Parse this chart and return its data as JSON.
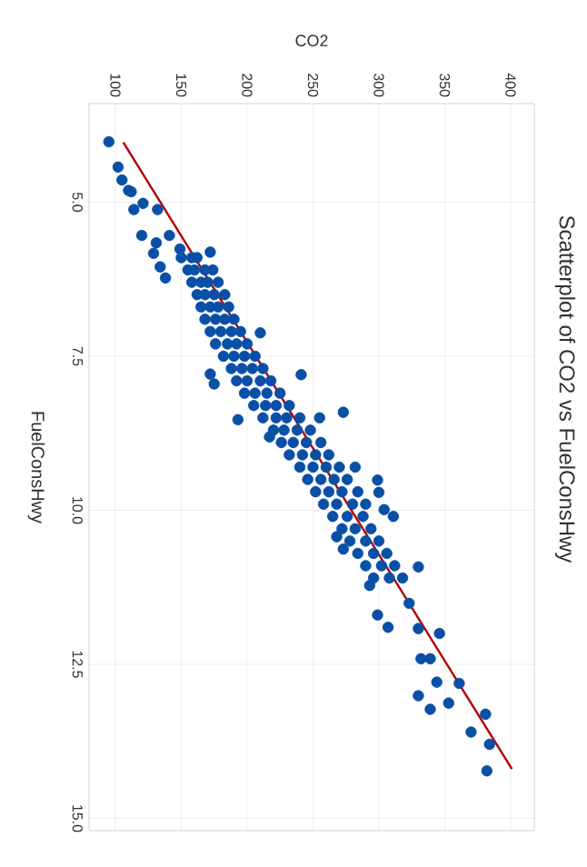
{
  "chart_data": {
    "type": "scatter",
    "title": "Scatterplot of CO2 vs FuelConsHwy",
    "xlabel": "CO2",
    "ylabel": "FuelConsHwy",
    "xlim": [
      80,
      418
    ],
    "ylim": [
      15.2,
      3.4
    ],
    "xticks": [
      100,
      150,
      200,
      250,
      300,
      350,
      400
    ],
    "yticks": [
      {
        "value": 5,
        "label": "5.0"
      },
      {
        "value": 7.5,
        "label": "7.5"
      },
      {
        "value": 10,
        "label": "10.0"
      },
      {
        "value": 12.5,
        "label": "12.5"
      },
      {
        "value": 15,
        "label": "15.0"
      }
    ],
    "grid": true,
    "series": [
      {
        "color": "#0a4fa6",
        "marker": "circle",
        "x": [
          95,
          102,
          105,
          110,
          112,
          114,
          121,
          132,
          120,
          131,
          129,
          134,
          138,
          141,
          149,
          172,
          172,
          175,
          193,
          217,
          210,
          273,
          241,
          299,
          300,
          311,
          304,
          268,
          273,
          330,
          299,
          307,
          323,
          346,
          330,
          293,
          332,
          339,
          344,
          361,
          330,
          339,
          353,
          381,
          370,
          384,
          382,
          150,
          158,
          162,
          155,
          160,
          168,
          174,
          158,
          165,
          170,
          178,
          162,
          168,
          175,
          183,
          165,
          172,
          178,
          186,
          168,
          176,
          183,
          190,
          172,
          180,
          188,
          195,
          176,
          185,
          192,
          200,
          182,
          190,
          198,
          206,
          188,
          196,
          204,
          212,
          192,
          200,
          210,
          218,
          198,
          206,
          215,
          225,
          205,
          214,
          222,
          232,
          212,
          222,
          230,
          240,
          255,
          220,
          228,
          238,
          248,
          226,
          235,
          245,
          256,
          232,
          242,
          252,
          262,
          240,
          250,
          260,
          270,
          282,
          246,
          256,
          266,
          276,
          252,
          262,
          272,
          284,
          258,
          268,
          280,
          290,
          265,
          276,
          288,
          272,
          282,
          294,
          278,
          290,
          300,
          284,
          296,
          306,
          290,
          302,
          312,
          296,
          308,
          318
        ],
        "values": [
          4.02,
          4.43,
          4.64,
          4.81,
          4.83,
          5.12,
          5.02,
          5.12,
          5.54,
          5.66,
          5.83,
          6.05,
          6.23,
          5.54,
          5.76,
          5.81,
          7.79,
          7.95,
          8.53,
          8.81,
          7.12,
          8.41,
          7.8,
          9.51,
          9.71,
          10.1,
          9.99,
          10.43,
          10.63,
          10.92,
          11.7,
          11.9,
          11.51,
          12.0,
          11.92,
          11.22,
          12.41,
          12.41,
          12.79,
          12.81,
          13.01,
          13.23,
          13.13,
          13.31,
          13.6,
          13.8,
          14.23,
          5.9,
          5.9,
          5.9,
          6.1,
          6.1,
          6.1,
          6.1,
          6.3,
          6.3,
          6.3,
          6.3,
          6.5,
          6.5,
          6.5,
          6.5,
          6.7,
          6.7,
          6.7,
          6.7,
          6.9,
          6.9,
          6.9,
          6.9,
          7.1,
          7.1,
          7.1,
          7.1,
          7.3,
          7.3,
          7.3,
          7.3,
          7.5,
          7.5,
          7.5,
          7.5,
          7.7,
          7.7,
          7.7,
          7.7,
          7.9,
          7.9,
          7.9,
          7.9,
          8.1,
          8.1,
          8.1,
          8.1,
          8.3,
          8.3,
          8.3,
          8.3,
          8.5,
          8.5,
          8.5,
          8.5,
          8.5,
          8.7,
          8.7,
          8.7,
          8.7,
          8.9,
          8.9,
          8.9,
          8.9,
          9.1,
          9.1,
          9.1,
          9.1,
          9.3,
          9.3,
          9.3,
          9.3,
          9.3,
          9.5,
          9.5,
          9.5,
          9.5,
          9.7,
          9.7,
          9.7,
          9.7,
          9.9,
          9.9,
          9.9,
          9.9,
          10.1,
          10.1,
          10.1,
          10.3,
          10.3,
          10.3,
          10.5,
          10.5,
          10.5,
          10.7,
          10.7,
          10.7,
          10.9,
          10.9,
          10.9,
          11.1,
          11.1,
          11.1
        ]
      },
      {
        "type": "line",
        "marker": "none",
        "color": "#b00000",
        "x": [
          106,
          401
        ],
        "values": [
          4.03,
          14.2
        ]
      }
    ]
  }
}
